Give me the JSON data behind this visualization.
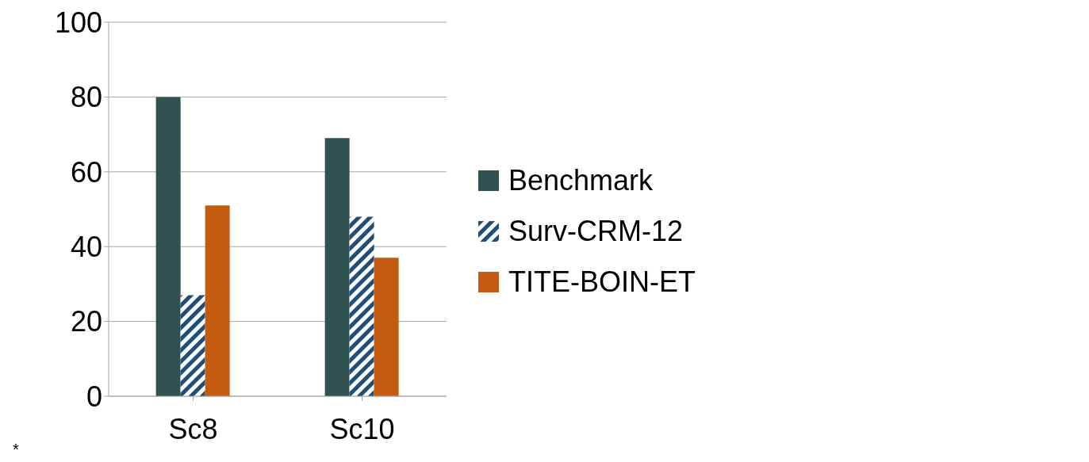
{
  "chart_data": {
    "type": "bar",
    "categories": [
      "Sc8",
      "Sc10"
    ],
    "series": [
      {
        "name": "Benchmark",
        "color": "#2f5150",
        "values": [
          80,
          69
        ]
      },
      {
        "name": "Surv-CRM-12",
        "color": "#1f4e79",
        "values": [
          27,
          48
        ]
      },
      {
        "name": "TITE-BOIN-ET",
        "color": "#c55a11",
        "values": [
          51,
          37
        ]
      }
    ],
    "ylim": [
      0,
      100
    ],
    "yticks": [
      0,
      20,
      40,
      60,
      80,
      100
    ],
    "grid": "y",
    "legend": "right",
    "annotations": [
      "*"
    ]
  }
}
